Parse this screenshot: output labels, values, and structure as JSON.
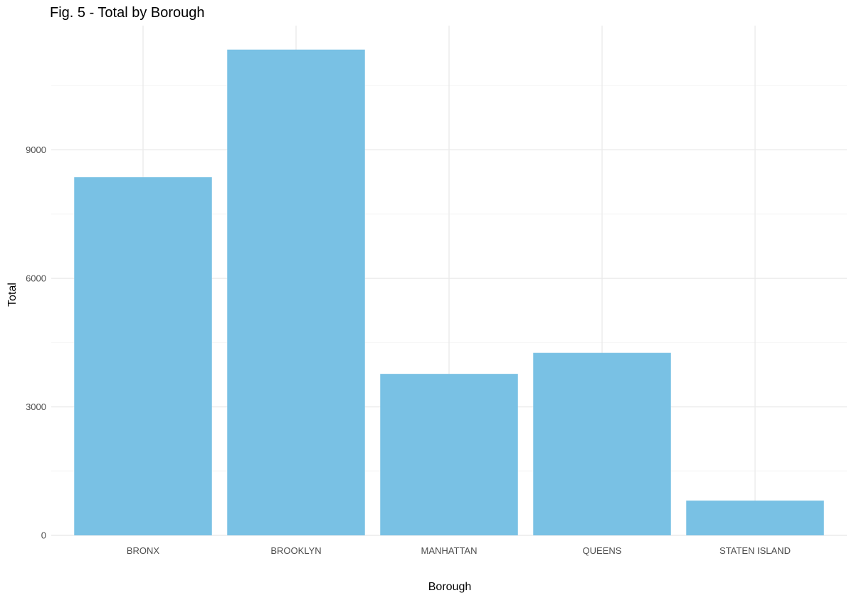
{
  "chart_data": {
    "type": "bar",
    "title": "Fig. 5 - Total by Borough",
    "xlabel": "Borough",
    "ylabel": "Total",
    "categories": [
      "BRONX",
      "BROOKLYN",
      "MANHATTAN",
      "QUEENS",
      "STATEN ISLAND"
    ],
    "values": [
      8360,
      11340,
      3770,
      4260,
      810
    ],
    "ylim": [
      0,
      11900
    ],
    "yticks": [
      0,
      3000,
      6000,
      9000
    ],
    "ytick_labels": [
      "0",
      "3000",
      "6000",
      "9000"
    ],
    "grid": true,
    "legend": "none",
    "bar_color": "#79c1e4"
  }
}
